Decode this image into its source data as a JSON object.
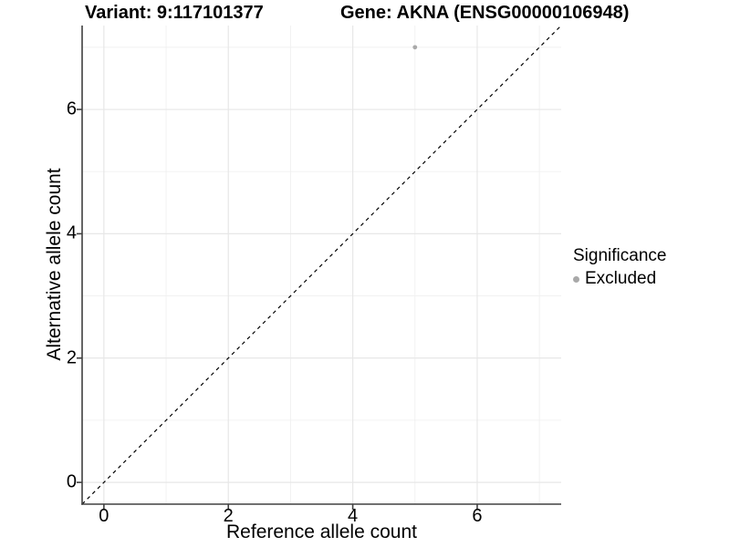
{
  "header": {
    "variant_title": "Variant: 9:117101377",
    "gene_title": "Gene: AKNA (ENSG00000106948)"
  },
  "chart_data": {
    "type": "scatter",
    "title_left": "Variant: 9:117101377",
    "title_right": "Gene: AKNA (ENSG00000106948)",
    "xlabel": "Reference allele count",
    "ylabel": "Alternative allele count",
    "xlim": [
      -0.35,
      7.35
    ],
    "ylim": [
      -0.35,
      7.35
    ],
    "x_major_ticks": [
      0,
      2,
      4,
      6
    ],
    "y_major_ticks": [
      0,
      2,
      4,
      6
    ],
    "x_minor_gridlines": [
      1,
      3,
      5,
      7
    ],
    "y_minor_gridlines": [
      1,
      3,
      5,
      7
    ],
    "grid": "major-and-minor",
    "points": [
      {
        "x": 5,
        "y": 7,
        "series": "Excluded",
        "color": "#a9a9a9"
      }
    ],
    "reference_line": {
      "type": "identity",
      "slope": 1,
      "intercept": 0,
      "style": "dashed"
    },
    "legend": {
      "title": "Significance",
      "position": "right",
      "items": [
        {
          "label": "Excluded",
          "marker": "circle",
          "color": "#a9a9a9"
        }
      ]
    }
  },
  "colors": {
    "background": "#ffffff",
    "point": "#a9a9a9",
    "grid_major": "#e7e7e7",
    "grid_minor": "#f0f0f0",
    "axis_line": "#404040",
    "reference_line": "#000000",
    "text": "#000000"
  }
}
